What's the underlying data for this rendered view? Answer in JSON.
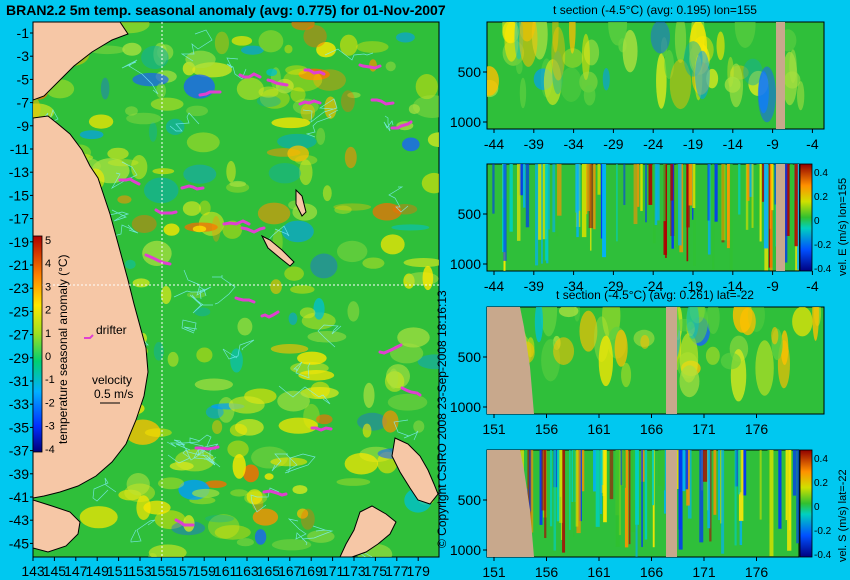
{
  "title": "BRAN2.2 5m temp. seasonal anomaly (avg: 0.775) for 01-Nov-2007",
  "map": {
    "lat_ticks": [
      "-1",
      "-3",
      "-5",
      "-7",
      "-9",
      "-11",
      "-13",
      "-15",
      "-17",
      "-19",
      "-21",
      "-23",
      "-25",
      "-27",
      "-29",
      "-31",
      "-33",
      "-35",
      "-37",
      "-39",
      "-41",
      "-43",
      "-45"
    ],
    "lon_ticks": [
      "143",
      "145",
      "147",
      "149",
      "151",
      "153",
      "155",
      "157",
      "159",
      "161",
      "163",
      "165",
      "167",
      "169",
      "171",
      "173",
      "175",
      "177",
      "179"
    ],
    "drifter_label": "drifter",
    "velocity_label": "velocity",
    "velocity_value": "0.5 m/s",
    "colorbar_title": "temperature seasonal anomaly (°C)",
    "colorbar_ticks": [
      "5",
      "4",
      "3",
      "2",
      "1",
      "0",
      "-1",
      "-2",
      "-3",
      "-4"
    ],
    "colors": {
      "land": "#f6c7a6",
      "ocean_bg": "#2fbf3a",
      "drifter": "#e040d0",
      "contour": "#7ff0ff"
    }
  },
  "copyright": "© Copyright CSIRO 2008   23-Sep-2008 18:16:13",
  "sections": [
    {
      "title": "t section (-4.5°C) (avg: 0.195) lon=155",
      "x_ticks": [
        "-44",
        "-39",
        "-34",
        "-29",
        "-24",
        "-19",
        "-14",
        "-9",
        "-4"
      ],
      "y_ticks": [
        "500",
        "1000"
      ],
      "colorbar": false,
      "side_label": ""
    },
    {
      "title": "",
      "x_ticks": [
        "-44",
        "-39",
        "-34",
        "-29",
        "-24",
        "-19",
        "-14",
        "-9",
        "-4"
      ],
      "y_ticks": [
        "500",
        "1000"
      ],
      "colorbar": true,
      "cb_ticks": [
        "0.4",
        "0.2",
        "0",
        "-0.2",
        "-0.4"
      ],
      "side_label": "vel. E (m/s)  lon=155"
    },
    {
      "title": "t section (-4.5°C) (avg: 0.261) lat=-22",
      "x_ticks": [
        "151",
        "156",
        "161",
        "166",
        "171",
        "176"
      ],
      "y_ticks": [
        "500",
        "1000"
      ],
      "colorbar": false,
      "side_label": ""
    },
    {
      "title": "",
      "x_ticks": [
        "151",
        "156",
        "161",
        "166",
        "171",
        "176"
      ],
      "y_ticks": [
        "500",
        "1000"
      ],
      "colorbar": true,
      "cb_ticks": [
        "0.4",
        "0.2",
        "0",
        "-0.2",
        "-0.4"
      ],
      "side_label": "vel. S (m/s)  lat=-22"
    }
  ],
  "chart_data": {
    "type": "heatmap",
    "title": "BRAN2.2 5m temp. seasonal anomaly (avg: 0.775) for 01-Nov-2007",
    "xlabel": "",
    "ylabel": "",
    "xlim": [
      143,
      180
    ],
    "ylim": [
      -45,
      0
    ],
    "colorbar_range": [
      -4,
      5
    ],
    "colorbar_label": "temperature seasonal anomaly (°C)"
  }
}
